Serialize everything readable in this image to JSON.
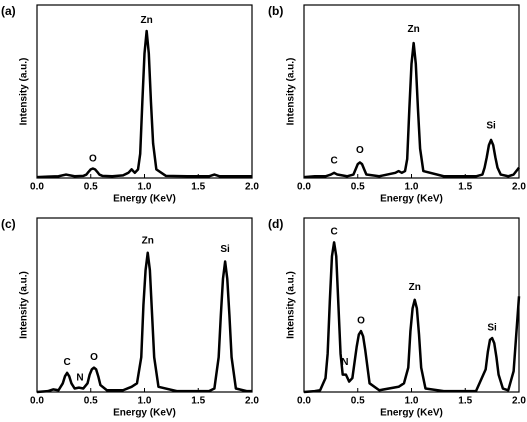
{
  "chart_data": [
    {
      "type": "line",
      "panel_label": "(a)",
      "xlabel": "Energy (KeV)",
      "ylabel": "Intensity (a.u.)",
      "color": "#000000",
      "xlim": [
        0,
        2
      ],
      "ylim": [
        0,
        100
      ],
      "xticks": [
        {
          "value": 0,
          "label": "0.0"
        },
        {
          "value": 0.5,
          "label": "0.5"
        },
        {
          "value": 1,
          "label": "1.0"
        },
        {
          "value": 1.5,
          "label": "1.5"
        },
        {
          "value": 2,
          "label": "2.0"
        }
      ],
      "x": [
        0,
        0.1,
        0.2,
        0.27,
        0.35,
        0.43,
        0.46,
        0.48,
        0.5,
        0.52,
        0.54,
        0.56,
        0.58,
        0.61,
        0.7,
        0.8,
        0.85,
        0.88,
        0.91,
        0.94,
        0.96,
        0.98,
        1.0,
        1.02,
        1.04,
        1.06,
        1.08,
        1.11,
        1.2,
        1.4,
        1.6,
        1.65,
        1.7,
        1.8,
        2.0
      ],
      "values": [
        0.5,
        0.8,
        1,
        2,
        1,
        1.2,
        2,
        3.6,
        5,
        5.5,
        5,
        3.6,
        2,
        1.2,
        1,
        1.5,
        3,
        5,
        3,
        5,
        14,
        44,
        72,
        85,
        72,
        44,
        20,
        5,
        1.2,
        1,
        1,
        2,
        1,
        1,
        1
      ],
      "annotations": [
        {
          "text": "O",
          "x": 0.52,
          "y": 11
        },
        {
          "text": "Zn",
          "x": 1.02,
          "y": 91
        }
      ]
    },
    {
      "type": "line",
      "panel_label": "(b)",
      "xlabel": "Energy (KeV)",
      "ylabel": "Intensity (a.u.)",
      "color": "#000000",
      "xlim": [
        0,
        2
      ],
      "ylim": [
        0,
        100
      ],
      "xticks": [
        {
          "value": 0,
          "label": "0.0"
        },
        {
          "value": 0.5,
          "label": "0.5"
        },
        {
          "value": 1,
          "label": "1.0"
        },
        {
          "value": 1.5,
          "label": "1.5"
        },
        {
          "value": 2,
          "label": "2.0"
        }
      ],
      "x": [
        0,
        0.1,
        0.2,
        0.25,
        0.28,
        0.31,
        0.4,
        0.46,
        0.48,
        0.5,
        0.52,
        0.54,
        0.56,
        0.58,
        0.7,
        0.85,
        0.88,
        0.91,
        0.94,
        0.96,
        0.98,
        1.0,
        1.02,
        1.04,
        1.06,
        1.08,
        1.11,
        1.3,
        1.6,
        1.66,
        1.68,
        1.7,
        1.72,
        1.74,
        1.76,
        1.78,
        1.8,
        1.83,
        1.9,
        1.95,
        2.0
      ],
      "values": [
        0.5,
        1,
        1,
        2,
        3,
        2,
        1,
        2,
        5,
        8,
        9,
        8,
        5,
        2,
        1,
        3,
        4,
        3,
        4,
        11,
        40,
        66,
        78,
        66,
        40,
        17,
        4,
        1,
        1,
        2,
        6,
        12,
        19,
        22,
        19,
        12,
        6,
        2,
        1,
        2,
        6
      ],
      "annotations": [
        {
          "text": "C",
          "x": 0.28,
          "y": 10
        },
        {
          "text": "O",
          "x": 0.52,
          "y": 16
        },
        {
          "text": "Zn",
          "x": 1.02,
          "y": 86
        },
        {
          "text": "Si",
          "x": 1.74,
          "y": 30
        }
      ]
    },
    {
      "type": "line",
      "panel_label": "(c)",
      "xlabel": "Energy (KeV)",
      "ylabel": "Intensity (a.u.)",
      "color": "#000000",
      "xlim": [
        0,
        2
      ],
      "ylim": [
        0,
        100
      ],
      "xticks": [
        {
          "value": 0,
          "label": "0.0"
        },
        {
          "value": 0.5,
          "label": "0.5"
        },
        {
          "value": 1,
          "label": "1.0"
        },
        {
          "value": 1.5,
          "label": "1.5"
        },
        {
          "value": 2,
          "label": "2.0"
        }
      ],
      "x": [
        0,
        0.1,
        0.15,
        0.2,
        0.24,
        0.26,
        0.28,
        0.3,
        0.32,
        0.35,
        0.39,
        0.43,
        0.47,
        0.49,
        0.51,
        0.53,
        0.55,
        0.57,
        0.59,
        0.65,
        0.8,
        0.88,
        0.93,
        0.97,
        0.99,
        1.01,
        1.03,
        1.05,
        1.07,
        1.09,
        1.13,
        1.3,
        1.6,
        1.65,
        1.69,
        1.71,
        1.73,
        1.75,
        1.77,
        1.79,
        1.81,
        1.85,
        1.95,
        2.0
      ],
      "values": [
        0,
        0.5,
        1.5,
        1,
        5,
        9,
        11,
        9,
        5,
        2,
        2.5,
        2,
        5,
        10,
        13,
        14,
        13,
        9,
        4,
        1,
        1,
        3,
        5,
        20,
        50,
        70,
        80,
        70,
        45,
        20,
        3,
        0.5,
        0.5,
        2,
        20,
        44,
        65,
        75,
        65,
        44,
        20,
        2,
        0.5,
        0.5
      ],
      "annotations": [
        {
          "text": "C",
          "x": 0.28,
          "y": 17
        },
        {
          "text": "N",
          "x": 0.4,
          "y": 8
        },
        {
          "text": "O",
          "x": 0.53,
          "y": 20
        },
        {
          "text": "Zn",
          "x": 1.03,
          "y": 87
        },
        {
          "text": "Si",
          "x": 1.75,
          "y": 82
        }
      ]
    },
    {
      "type": "line",
      "panel_label": "(d)",
      "xlabel": "Energy (KeV)",
      "ylabel": "Intensity (a.u.)",
      "color": "#000000",
      "xlim": [
        0,
        2
      ],
      "ylim": [
        0,
        100
      ],
      "xticks": [
        {
          "value": 0,
          "label": "0.0"
        },
        {
          "value": 0.5,
          "label": "0.5"
        },
        {
          "value": 1,
          "label": "1.0"
        },
        {
          "value": 1.5,
          "label": "1.5"
        },
        {
          "value": 2,
          "label": "2.0"
        }
      ],
      "x": [
        0,
        0.1,
        0.15,
        0.2,
        0.22,
        0.24,
        0.26,
        0.28,
        0.3,
        0.32,
        0.34,
        0.36,
        0.39,
        0.42,
        0.45,
        0.49,
        0.51,
        0.53,
        0.55,
        0.57,
        0.61,
        0.7,
        0.88,
        0.93,
        0.97,
        0.99,
        1.01,
        1.03,
        1.05,
        1.07,
        1.09,
        1.13,
        1.3,
        1.6,
        1.69,
        1.71,
        1.73,
        1.75,
        1.77,
        1.79,
        1.81,
        1.85,
        1.9,
        1.95,
        2.0
      ],
      "values": [
        0,
        0.5,
        1,
        8,
        22,
        52,
        78,
        86,
        78,
        50,
        22,
        10,
        10,
        6,
        8,
        26,
        33,
        35,
        32,
        24,
        5,
        1,
        3,
        5,
        14,
        35,
        48,
        53,
        48,
        33,
        14,
        2,
        0.5,
        0.5,
        13,
        23,
        30,
        31,
        28,
        20,
        10,
        2,
        1,
        12,
        55
      ],
      "annotations": [
        {
          "text": "C",
          "x": 0.28,
          "y": 92
        },
        {
          "text": "N",
          "x": 0.38,
          "y": 17
        },
        {
          "text": "O",
          "x": 0.53,
          "y": 41
        },
        {
          "text": "Zn",
          "x": 1.03,
          "y": 60
        },
        {
          "text": "Si",
          "x": 1.75,
          "y": 37
        }
      ]
    }
  ]
}
